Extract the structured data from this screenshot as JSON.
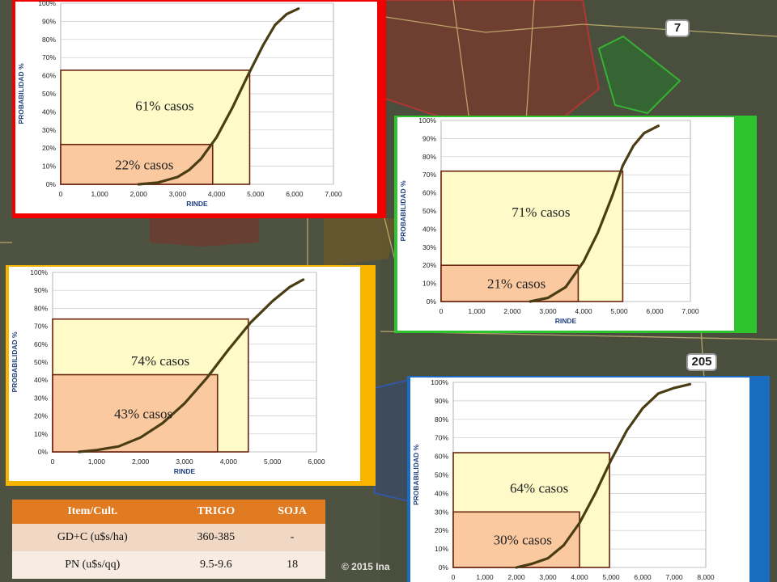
{
  "colors": {
    "red": "#f20000",
    "green": "#2dc42d",
    "orange": "#f7b500",
    "blue": "#1a6cc0",
    "curve": "#4a3d14",
    "box_light": "#fefbc8",
    "box_salmon": "#fac9a0",
    "box_border": "#6b2410"
  },
  "map": {
    "route_badges": [
      "7",
      "205"
    ],
    "credit": "© 2015 Ina"
  },
  "chart_data": [
    {
      "type": "line",
      "frame_color": "red",
      "ylabel": "PROBABILIDAD %",
      "xlabel": "RINDE",
      "xlim": [
        0,
        7000
      ],
      "ylim": [
        0,
        100
      ],
      "x_ticks": [
        "0",
        "1,000",
        "2,000",
        "3,000",
        "4,000",
        "5,000",
        "6,000",
        "7,000"
      ],
      "y_ticks": [
        "0%",
        "10%",
        "20%",
        "30%",
        "40%",
        "50%",
        "60%",
        "70%",
        "80%",
        "90%",
        "100%"
      ],
      "x": [
        2000,
        2500,
        3000,
        3300,
        3600,
        4000,
        4400,
        4800,
        5200,
        5500,
        5800,
        6100
      ],
      "y": [
        0,
        1,
        4,
        8,
        14,
        26,
        42,
        60,
        77,
        88,
        94,
        97
      ],
      "annotations": [
        {
          "label": "61% casos",
          "x": 4850,
          "y": 63
        },
        {
          "label": "22% casos",
          "x": 3900,
          "y": 22
        }
      ]
    },
    {
      "type": "line",
      "frame_color": "green",
      "ylabel": "PROBABILIDAD %",
      "xlabel": "RINDE",
      "xlim": [
        0,
        7000
      ],
      "ylim": [
        0,
        100
      ],
      "x_ticks": [
        "0",
        "1,000",
        "2,000",
        "3,000",
        "4,000",
        "5,000",
        "6,000",
        "7,000"
      ],
      "y_ticks": [
        "0%",
        "10%",
        "20%",
        "30%",
        "40%",
        "50%",
        "60%",
        "70%",
        "80%",
        "90%",
        "100%"
      ],
      "x": [
        2500,
        3000,
        3500,
        4000,
        4400,
        4800,
        5100,
        5400,
        5700,
        6100
      ],
      "y": [
        0,
        2,
        8,
        22,
        38,
        58,
        75,
        86,
        93,
        97
      ],
      "annotations": [
        {
          "label": "71% casos",
          "x": 5100,
          "y": 72
        },
        {
          "label": "21% casos",
          "x": 3850,
          "y": 20
        }
      ]
    },
    {
      "type": "line",
      "frame_color": "orange",
      "ylabel": "PROBABILIDAD %",
      "xlabel": "RINDE",
      "xlim": [
        0,
        6000
      ],
      "ylim": [
        0,
        100
      ],
      "x_ticks": [
        "0",
        "1,000",
        "2,000",
        "3,000",
        "4,000",
        "5,000",
        "6,000"
      ],
      "y_ticks": [
        "0%",
        "10%",
        "20%",
        "30%",
        "40%",
        "50%",
        "60%",
        "70%",
        "80%",
        "90%",
        "100%"
      ],
      "x": [
        600,
        1000,
        1500,
        2000,
        2500,
        3000,
        3500,
        4000,
        4500,
        5000,
        5400,
        5700
      ],
      "y": [
        0,
        1,
        3,
        8,
        16,
        27,
        41,
        57,
        72,
        84,
        92,
        96
      ],
      "annotations": [
        {
          "label": "74% casos",
          "x": 4450,
          "y": 74
        },
        {
          "label": "43% casos",
          "x": 3750,
          "y": 43
        }
      ]
    },
    {
      "type": "line",
      "frame_color": "blue",
      "ylabel": "PROBABILIDAD %",
      "xlabel": "",
      "xlim": [
        0,
        8000
      ],
      "ylim": [
        0,
        100
      ],
      "x_ticks": [
        "0",
        "1,000",
        "2,000",
        "3,000",
        "4,000",
        "5,000",
        "6,000",
        "7,000",
        "8,000"
      ],
      "y_ticks": [
        "0%",
        "10%",
        "20%",
        "30%",
        "40%",
        "50%",
        "60%",
        "70%",
        "80%",
        "90%",
        "100%"
      ],
      "x": [
        2000,
        2500,
        3000,
        3500,
        4000,
        4500,
        5000,
        5500,
        6000,
        6500,
        7000,
        7500
      ],
      "y": [
        0,
        2,
        5,
        12,
        24,
        40,
        58,
        74,
        86,
        94,
        97,
        99
      ],
      "annotations": [
        {
          "label": "64% casos",
          "x": 4950,
          "y": 62
        },
        {
          "label": "30% casos",
          "x": 4000,
          "y": 30
        }
      ]
    }
  ],
  "table": {
    "headers": [
      "Item/Cult.",
      "TRIGO",
      "SOJA"
    ],
    "rows": [
      [
        "GD+C (u$s/ha)",
        "360-385",
        "-"
      ],
      [
        "PN (u$s/qq)",
        "9.5-9.6",
        "18"
      ]
    ]
  }
}
